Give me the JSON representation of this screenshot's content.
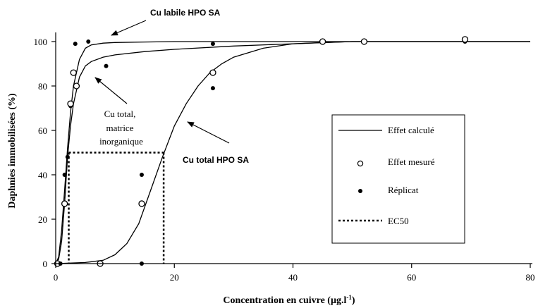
{
  "chart_data": {
    "type": "line",
    "xlabel": "Concentration en cuivre (µg.l",
    "xlabel_superscript": "-1",
    "xlabel_suffix": ")",
    "ylabel": "Daphnies immobilisées (%)",
    "xlim": [
      0,
      80
    ],
    "ylim": [
      0,
      100
    ],
    "x_ticks": [
      "0",
      "20",
      "40",
      "60",
      "80"
    ],
    "y_ticks": [
      "0",
      "20",
      "40",
      "60",
      "80",
      "100"
    ],
    "grid": false,
    "legend_position": "right",
    "legend": {
      "calc": "Effet calculé",
      "meas": "Effet mesuré",
      "rep": "Réplicat",
      "ec50": "EC50"
    },
    "annotations": {
      "labile": "Cu labile HPO SA",
      "total_inorg": [
        "Cu total,",
        "matrice",
        "inorganique"
      ],
      "total_hpo": "Cu total HPO SA"
    },
    "series": [
      {
        "key": "labile",
        "curve_x": [
          0,
          0.5,
          1.0,
          1.5,
          2.0,
          2.5,
          3.0,
          4.0,
          5.0,
          6.0,
          8.0,
          10,
          15,
          20,
          30,
          40,
          60,
          80
        ],
        "curve_y": [
          0,
          3,
          15,
          33,
          52,
          68,
          80,
          92,
          97,
          98.5,
          99.3,
          99.6,
          99.8,
          100,
          100,
          100,
          100,
          100
        ],
        "measured": [
          {
            "x": 0.3,
            "y": 0
          },
          {
            "x": 1.5,
            "y": 27
          },
          {
            "x": 3.0,
            "y": 86
          }
        ],
        "replicates": [
          {
            "x": 0.5,
            "y": 0
          },
          {
            "x": 2.0,
            "y": 48
          },
          {
            "x": 3.3,
            "y": 99
          },
          {
            "x": 5.5,
            "y": 100
          }
        ]
      },
      {
        "key": "total_inorg",
        "curve_x": [
          0,
          0.5,
          1.0,
          1.5,
          2.0,
          2.5,
          3.0,
          4.0,
          5.0,
          6.0,
          8.0,
          10,
          15,
          20,
          30,
          40,
          50,
          80
        ],
        "curve_y": [
          0,
          2,
          10,
          27,
          48,
          62,
          72,
          84,
          89,
          91,
          93,
          94,
          95.5,
          96.5,
          98,
          99,
          100,
          100
        ],
        "measured": [
          {
            "x": 2.5,
            "y": 72
          },
          {
            "x": 3.5,
            "y": 80
          }
        ],
        "replicates": [
          {
            "x": 1.5,
            "y": 40
          },
          {
            "x": 2.5,
            "y": 71
          },
          {
            "x": 8.5,
            "y": 89
          },
          {
            "x": 0.8,
            "y": 0
          }
        ]
      },
      {
        "key": "total_hpo",
        "curve_x": [
          0,
          5,
          8,
          10,
          12,
          14,
          16,
          18,
          20,
          22,
          24,
          26,
          28,
          30,
          35,
          40,
          45,
          50,
          60,
          80
        ],
        "curve_y": [
          0,
          0.5,
          1.5,
          4,
          9,
          18,
          33,
          48,
          62,
          72,
          80,
          86,
          90,
          93,
          97,
          99,
          99.6,
          100,
          100,
          100
        ],
        "measured": [
          {
            "x": 7.5,
            "y": 0
          },
          {
            "x": 14.5,
            "y": 27
          },
          {
            "x": 26.5,
            "y": 86
          },
          {
            "x": 45,
            "y": 100
          },
          {
            "x": 52,
            "y": 100
          },
          {
            "x": 69,
            "y": 101
          }
        ],
        "replicates": [
          {
            "x": 7.5,
            "y": 0
          },
          {
            "x": 14.5,
            "y": 40
          },
          {
            "x": 14.5,
            "y": 0
          },
          {
            "x": 26.5,
            "y": 79
          },
          {
            "x": 26.5,
            "y": 99
          },
          {
            "x": 45,
            "y": 100
          },
          {
            "x": 52,
            "y": 100
          },
          {
            "x": 69,
            "y": 100
          }
        ]
      }
    ],
    "ec50": {
      "y": 50,
      "x_values": [
        2.2,
        18.2
      ]
    }
  }
}
